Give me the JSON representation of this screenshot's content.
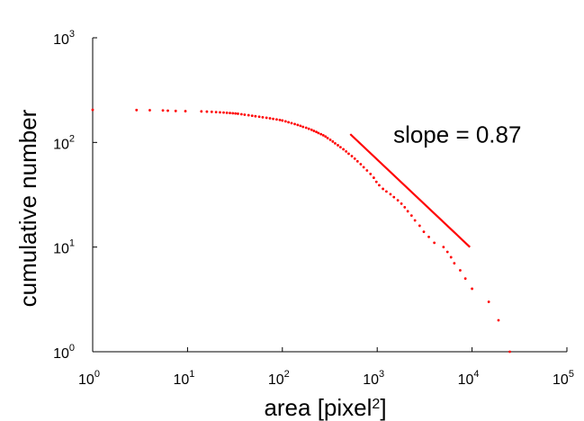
{
  "chart_data": {
    "type": "scatter",
    "log_x": true,
    "log_y": true,
    "xlim": [
      1,
      100000
    ],
    "ylim": [
      1,
      1000
    ],
    "x_ticks": [
      {
        "base": "10",
        "exp": "0",
        "value": 1
      },
      {
        "base": "10",
        "exp": "1",
        "value": 10
      },
      {
        "base": "10",
        "exp": "2",
        "value": 100
      },
      {
        "base": "10",
        "exp": "3",
        "value": 1000
      },
      {
        "base": "10",
        "exp": "4",
        "value": 10000
      },
      {
        "base": "10",
        "exp": "5",
        "value": 100000
      }
    ],
    "y_ticks": [
      {
        "base": "10",
        "exp": "0",
        "value": 1
      },
      {
        "base": "10",
        "exp": "1",
        "value": 10
      },
      {
        "base": "10",
        "exp": "2",
        "value": 100
      },
      {
        "base": "10",
        "exp": "3",
        "value": 1000
      }
    ],
    "xlabel": {
      "text": "area [pixel",
      "sup": "2",
      "tail": "]"
    },
    "ylabel": "cumulative number",
    "grid": false,
    "point_color": "#ff0000",
    "line_color": "#ff0000",
    "points": [
      [
        1.0,
        205
      ],
      [
        2.9,
        204
      ],
      [
        4.0,
        203
      ],
      [
        5.5,
        202
      ],
      [
        6.2,
        201
      ],
      [
        7.5,
        200
      ],
      [
        9.5,
        199
      ],
      [
        14,
        198
      ],
      [
        16,
        197
      ],
      [
        18,
        196
      ],
      [
        20,
        195
      ],
      [
        22,
        194
      ],
      [
        24,
        193
      ],
      [
        26,
        192
      ],
      [
        28,
        191
      ],
      [
        30,
        190
      ],
      [
        32,
        189
      ],
      [
        34,
        188
      ],
      [
        37,
        186
      ],
      [
        40,
        184
      ],
      [
        44,
        182
      ],
      [
        48,
        180
      ],
      [
        52,
        178
      ],
      [
        57,
        176
      ],
      [
        62,
        174
      ],
      [
        68,
        172
      ],
      [
        74,
        170
      ],
      [
        80,
        168
      ],
      [
        87,
        166
      ],
      [
        94,
        164
      ],
      [
        100,
        162
      ],
      [
        108,
        159
      ],
      [
        116,
        156
      ],
      [
        125,
        153
      ],
      [
        135,
        150
      ],
      [
        145,
        147
      ],
      [
        155,
        144
      ],
      [
        165,
        141
      ],
      [
        178,
        138
      ],
      [
        190,
        135
      ],
      [
        203,
        132
      ],
      [
        215,
        129
      ],
      [
        228,
        126
      ],
      [
        240,
        123
      ],
      [
        255,
        120
      ],
      [
        270,
        117
      ],
      [
        285,
        114
      ],
      [
        300,
        110
      ],
      [
        320,
        106
      ],
      [
        340,
        102
      ],
      [
        360,
        98
      ],
      [
        385,
        94
      ],
      [
        410,
        90
      ],
      [
        440,
        86
      ],
      [
        470,
        82
      ],
      [
        500,
        78
      ],
      [
        540,
        74
      ],
      [
        580,
        70
      ],
      [
        620,
        66
      ],
      [
        670,
        62
      ],
      [
        720,
        58
      ],
      [
        780,
        54
      ],
      [
        850,
        50
      ],
      [
        920,
        46
      ],
      [
        980,
        42
      ],
      [
        1050,
        39
      ],
      [
        1150,
        36
      ],
      [
        1250,
        34
      ],
      [
        1380,
        32
      ],
      [
        1500,
        30
      ],
      [
        1650,
        28
      ],
      [
        1800,
        26
      ],
      [
        1950,
        24
      ],
      [
        2100,
        22
      ],
      [
        2300,
        20
      ],
      [
        2500,
        18
      ],
      [
        2800,
        16
      ],
      [
        3100,
        14
      ],
      [
        3500,
        12.5
      ],
      [
        4000,
        11
      ],
      [
        5000,
        10
      ],
      [
        5500,
        9
      ],
      [
        6000,
        8
      ],
      [
        6500,
        7
      ],
      [
        7500,
        6
      ],
      [
        8500,
        5
      ],
      [
        10000,
        4
      ],
      [
        15000,
        3
      ],
      [
        19000,
        2
      ],
      [
        25000,
        1
      ]
    ],
    "fit_line": {
      "x": [
        520,
        9500
      ],
      "y": [
        120,
        10
      ]
    },
    "annotation": {
      "text": "slope = 0.87",
      "x": 7000,
      "y": 100
    }
  }
}
